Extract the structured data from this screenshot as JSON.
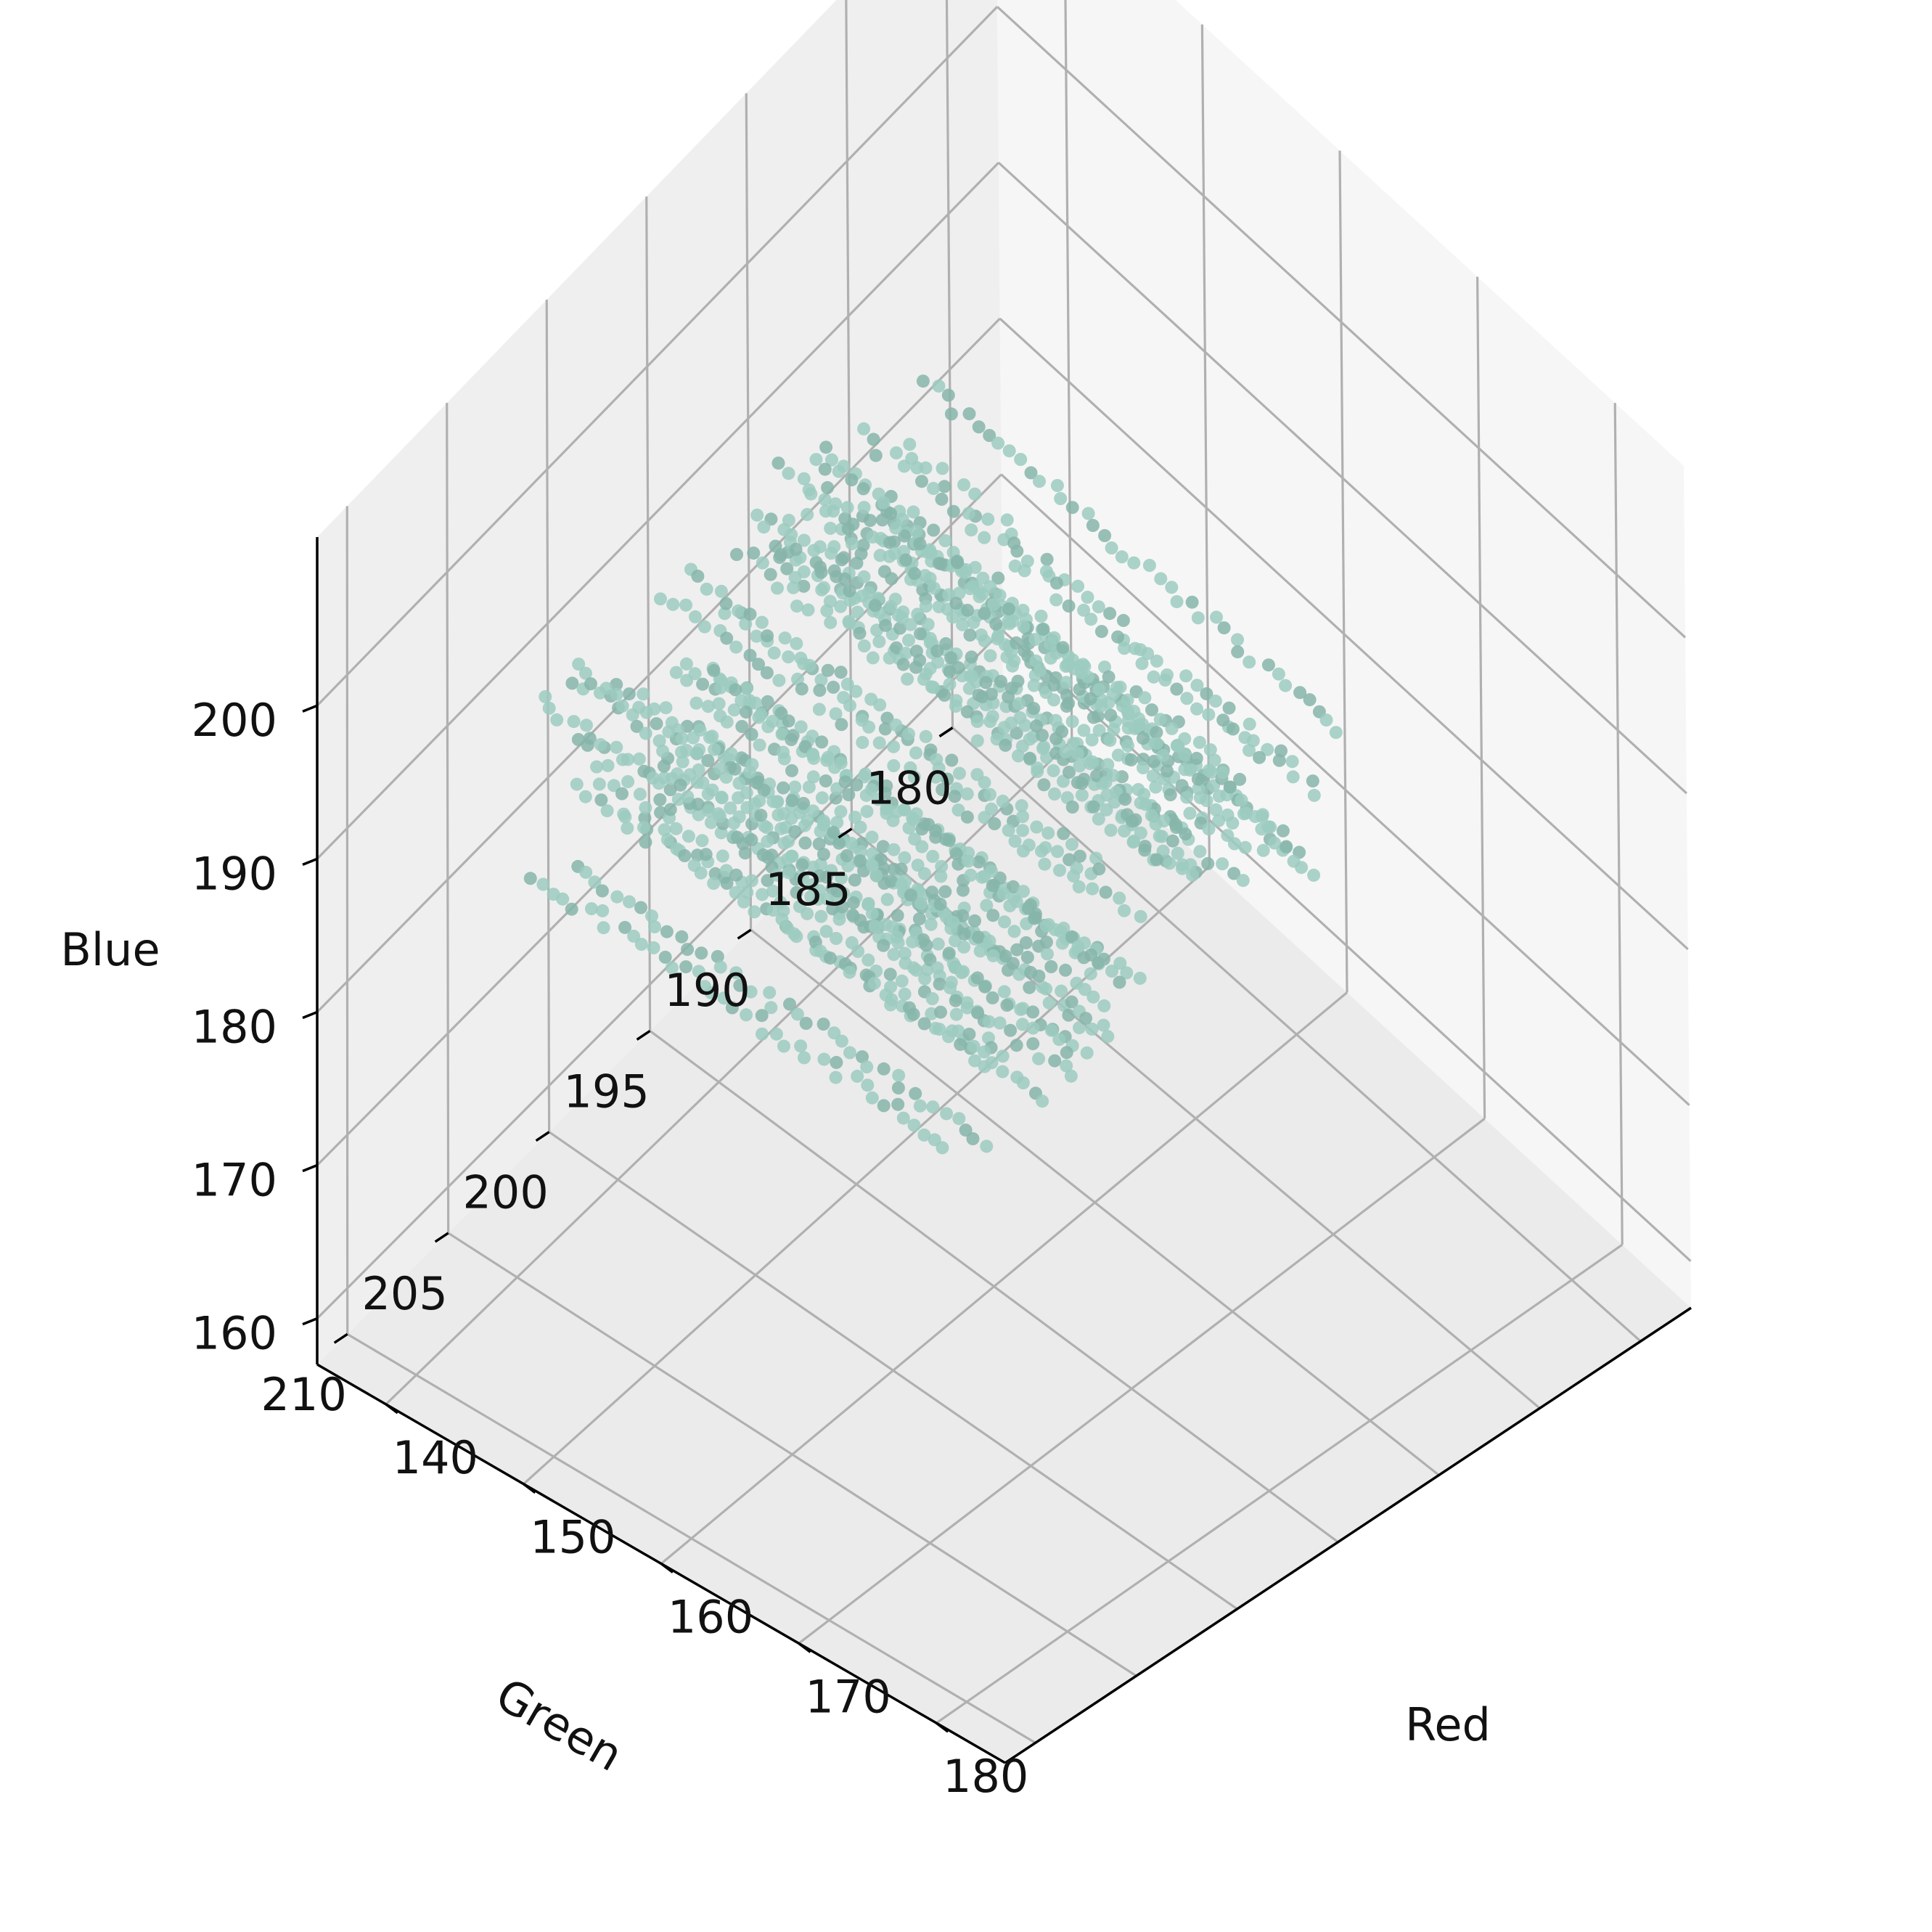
{
  "chart_data": {
    "type": "scatter",
    "projection": "3d",
    "title": "",
    "xlabel": "Red",
    "ylabel": "Green",
    "zlabel": "Blue",
    "xlim": [
      135,
      185
    ],
    "ylim": [
      177.5,
      211.5
    ],
    "zlim": [
      157,
      211
    ],
    "x_ticks": [
      "140",
      "150",
      "160",
      "170",
      "180"
    ],
    "y_ticks": [
      "180",
      "185",
      "190",
      "195",
      "200",
      "205",
      "210"
    ],
    "z_ticks": [
      "160",
      "170",
      "180",
      "190",
      "200"
    ],
    "grid": true,
    "legend": "none",
    "marker_color": "#9ccbc0",
    "marker_color_dark": "#86b5a9",
    "pane_color": "#f2f2f2",
    "grid_color": "#b0b0b0",
    "point_cloud": {
      "red_range": [
        140,
        170
      ],
      "green_range": [
        184,
        205
      ],
      "blue_range": [
        180,
        193
      ],
      "blue_levels": [
        180,
        181,
        182,
        183,
        184,
        185,
        186,
        187,
        188,
        189,
        190,
        191,
        192,
        193
      ],
      "note": "points form horizontal streaks at discrete Blue levels spanning Red 140-170 and Green 184-205"
    }
  }
}
